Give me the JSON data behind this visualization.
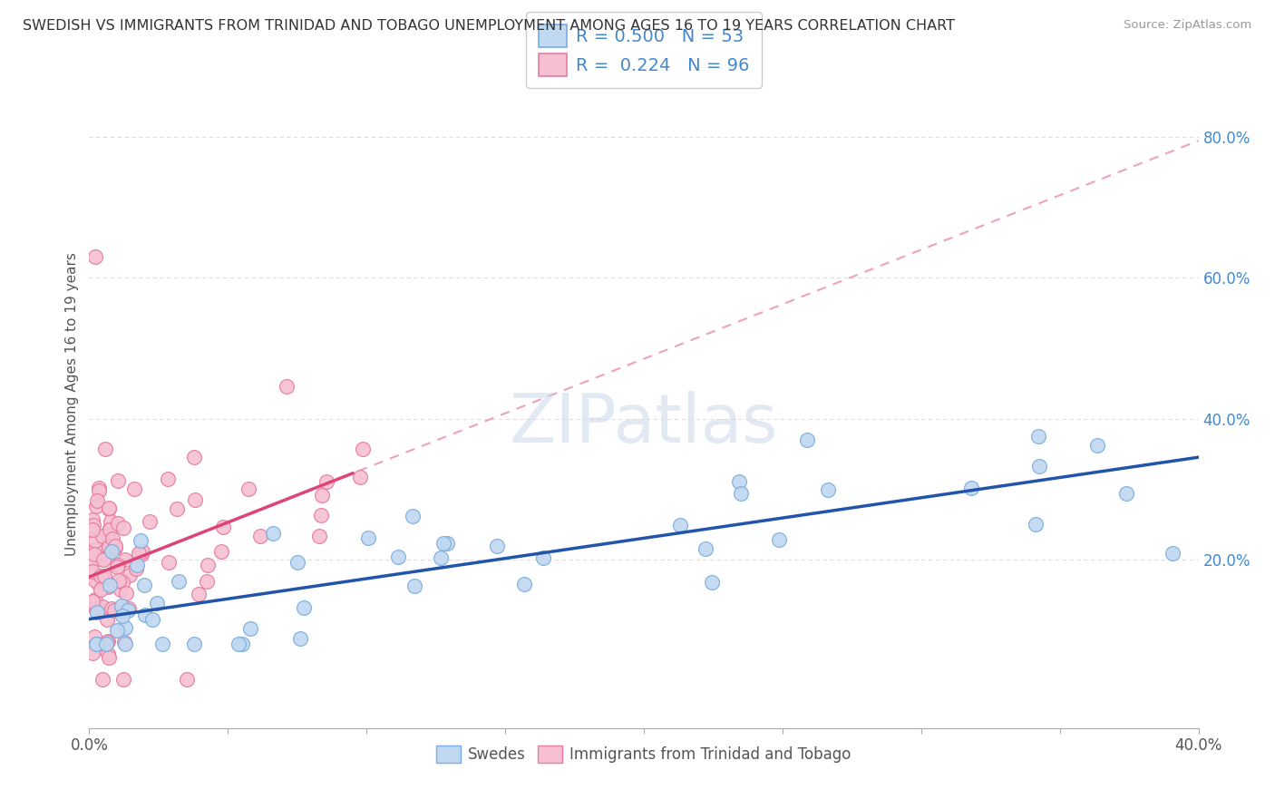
{
  "title": "SWEDISH VS IMMIGRANTS FROM TRINIDAD AND TOBAGO UNEMPLOYMENT AMONG AGES 16 TO 19 YEARS CORRELATION CHART",
  "source": "Source: ZipAtlas.com",
  "ylabel": "Unemployment Among Ages 16 to 19 years",
  "xlim": [
    0.0,
    0.4
  ],
  "ylim": [
    -0.04,
    0.88
  ],
  "right_yticks": [
    0.0,
    0.2,
    0.4,
    0.6,
    0.8
  ],
  "right_yticklabels": [
    "",
    "20.0%",
    "40.0%",
    "60.0%",
    "80.0%"
  ],
  "grid_color": "#dddddd",
  "background_color": "#ffffff",
  "blue_color": "#7aace0",
  "blue_fill": "#c0d8f0",
  "pink_color": "#e87aa0",
  "pink_fill": "#f5c0d2",
  "blue_line_color": "#2255aa",
  "pink_line_color": "#dd4477",
  "pink_dash_color": "#f0a0bf",
  "legend_R1": "0.500",
  "legend_N1": "53",
  "legend_R2": "0.224",
  "legend_N2": "96",
  "blue_intercept": 0.115,
  "blue_slope": 0.575,
  "pink_intercept": 0.175,
  "pink_slope": 1.55
}
